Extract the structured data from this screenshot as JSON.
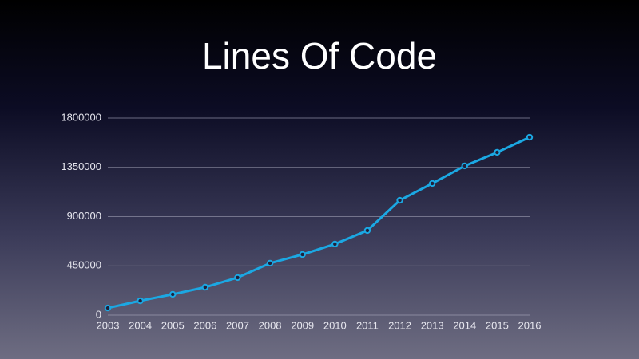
{
  "chart_data": {
    "type": "line",
    "title": "Lines Of Code",
    "categories": [
      "2003",
      "2004",
      "2005",
      "2006",
      "2007",
      "2008",
      "2009",
      "2010",
      "2011",
      "2012",
      "2013",
      "2014",
      "2015",
      "2016"
    ],
    "series": [
      {
        "name": "Lines Of Code",
        "color": "#1ba8e3",
        "values": [
          65000,
          131000,
          190000,
          255000,
          343000,
          474000,
          554000,
          649000,
          773000,
          1049000,
          1203000,
          1363000,
          1487000,
          1625000
        ]
      }
    ],
    "ylim": [
      0,
      1800000
    ],
    "yticks": [
      0,
      450000,
      900000,
      1350000,
      1800000
    ],
    "grid": true
  }
}
